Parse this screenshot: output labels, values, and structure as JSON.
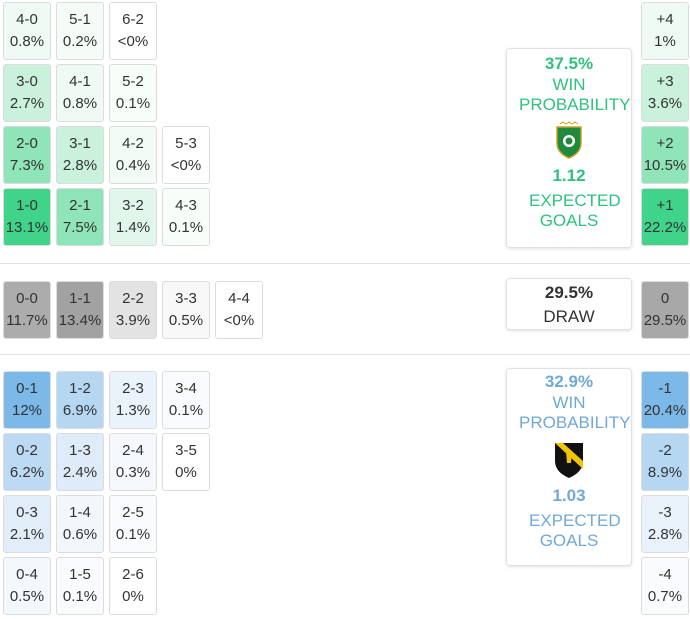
{
  "home": {
    "rows": [
      [
        {
          "score": "4-0",
          "prob": "0.8%",
          "color": "#eefaf3"
        },
        {
          "score": "5-1",
          "prob": "0.2%",
          "color": "#f5fcf8"
        },
        {
          "score": "6-2",
          "prob": "<0%",
          "color": "#ffffff"
        }
      ],
      [
        {
          "score": "3-0",
          "prob": "2.7%",
          "color": "#c9f1db"
        },
        {
          "score": "4-1",
          "prob": "0.8%",
          "color": "#eefaf3"
        },
        {
          "score": "5-2",
          "prob": "0.1%",
          "color": "#f7fdf9"
        }
      ],
      [
        {
          "score": "2-0",
          "prob": "7.3%",
          "color": "#8fe5b7"
        },
        {
          "score": "3-1",
          "prob": "2.8%",
          "color": "#c9f1db"
        },
        {
          "score": "4-2",
          "prob": "0.4%",
          "color": "#f2fbf6"
        },
        {
          "score": "5-3",
          "prob": "<0%",
          "color": "#ffffff"
        }
      ],
      [
        {
          "score": "1-0",
          "prob": "13.1%",
          "color": "#3fd48a"
        },
        {
          "score": "2-1",
          "prob": "7.5%",
          "color": "#8fe5b7"
        },
        {
          "score": "3-2",
          "prob": "1.4%",
          "color": "#e2f7eb"
        },
        {
          "score": "4-3",
          "prob": "0.1%",
          "color": "#f7fdf9"
        }
      ]
    ],
    "margins": [
      {
        "label": "+4",
        "prob": "1%",
        "color": "#eefaf3"
      },
      {
        "label": "+3",
        "prob": "3.6%",
        "color": "#c9f1db"
      },
      {
        "label": "+2",
        "prob": "10.5%",
        "color": "#8fe5b7"
      },
      {
        "label": "+1",
        "prob": "22.2%",
        "color": "#3fd48a"
      }
    ],
    "panel": {
      "probability": "37.5%",
      "label": "WIN PROBABILITY",
      "xg": "1.12",
      "xg_label": "EXPECTED GOALS",
      "color": "#2ec27e"
    }
  },
  "draw": {
    "cells": [
      {
        "score": "0-0",
        "prob": "11.7%",
        "color": "#acacac"
      },
      {
        "score": "1-1",
        "prob": "13.4%",
        "color": "#a2a2a2"
      },
      {
        "score": "2-2",
        "prob": "3.9%",
        "color": "#e3e3e3"
      },
      {
        "score": "3-3",
        "prob": "0.5%",
        "color": "#f8f8f8"
      },
      {
        "score": "4-4",
        "prob": "<0%",
        "color": "#ffffff"
      }
    ],
    "margin": {
      "label": "0",
      "prob": "29.5%",
      "color": "#a8a8a8"
    },
    "panel": {
      "probability": "29.5%",
      "label": "DRAW",
      "color": "#333333"
    }
  },
  "away": {
    "rows": [
      [
        {
          "score": "0-1",
          "prob": "12%",
          "color": "#7cb9e8"
        },
        {
          "score": "1-2",
          "prob": "6.9%",
          "color": "#b5d7f2"
        },
        {
          "score": "2-3",
          "prob": "1.3%",
          "color": "#eaf3fb"
        },
        {
          "score": "3-4",
          "prob": "0.1%",
          "color": "#f9fbfe"
        }
      ],
      [
        {
          "score": "0-2",
          "prob": "6.2%",
          "color": "#bcdaf3"
        },
        {
          "score": "1-3",
          "prob": "2.4%",
          "color": "#deecf9"
        },
        {
          "score": "2-4",
          "prob": "0.3%",
          "color": "#f5f9fd"
        },
        {
          "score": "3-5",
          "prob": "0%",
          "color": "#ffffff"
        }
      ],
      [
        {
          "score": "0-3",
          "prob": "2.1%",
          "color": "#e1eef9"
        },
        {
          "score": "1-4",
          "prob": "0.6%",
          "color": "#f2f7fc"
        },
        {
          "score": "2-5",
          "prob": "0.1%",
          "color": "#f9fbfe"
        }
      ],
      [
        {
          "score": "0-4",
          "prob": "0.5%",
          "color": "#f3f8fc"
        },
        {
          "score": "1-5",
          "prob": "0.1%",
          "color": "#f9fbfe"
        },
        {
          "score": "2-6",
          "prob": "0%",
          "color": "#ffffff"
        }
      ]
    ],
    "margins": [
      {
        "label": "-1",
        "prob": "20.4%",
        "color": "#7cb9e8"
      },
      {
        "label": "-2",
        "prob": "8.9%",
        "color": "#b5d7f2"
      },
      {
        "label": "-3",
        "prob": "2.8%",
        "color": "#e9f2fb"
      },
      {
        "label": "-4",
        "prob": "0.7%",
        "color": "#f9fbfe"
      }
    ],
    "panel": {
      "probability": "32.9%",
      "label": "WIN PROBABILITY",
      "xg": "1.03",
      "xg_label": "EXPECTED GOALS",
      "color": "#6fa9d8"
    }
  }
}
